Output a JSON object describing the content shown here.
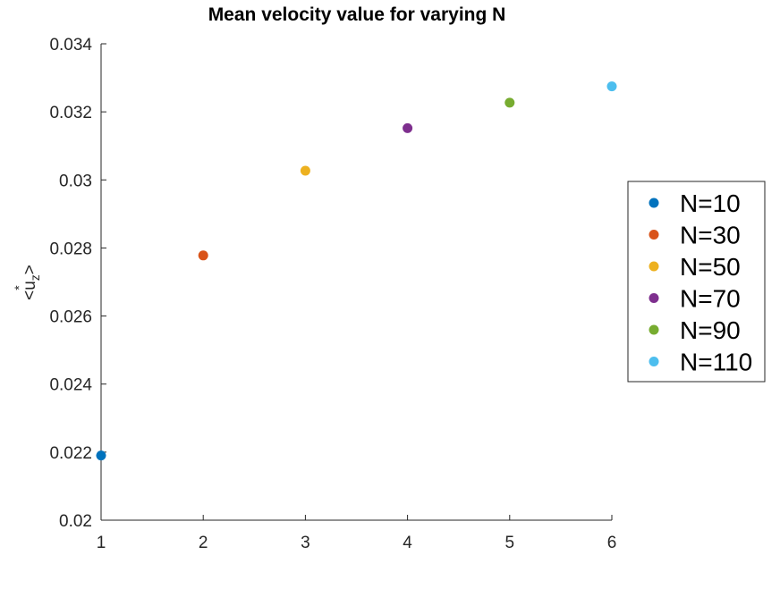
{
  "chart_data": {
    "type": "scatter",
    "title": "Mean velocity value for varying N",
    "xlabel": "",
    "ylabel": "<u_z^*>",
    "ylabel_parts": {
      "open": "<u",
      "sup": "*",
      "sub": "z",
      "close": ">"
    },
    "xlim": [
      1,
      6
    ],
    "ylim": [
      0.02,
      0.034
    ],
    "x_ticks": [
      {
        "value": 1,
        "label": "1"
      },
      {
        "value": 2,
        "label": "2"
      },
      {
        "value": 3,
        "label": "3"
      },
      {
        "value": 4,
        "label": "4"
      },
      {
        "value": 5,
        "label": "5"
      },
      {
        "value": 6,
        "label": "6"
      }
    ],
    "y_ticks": [
      {
        "value": 0.02,
        "label": "0.02"
      },
      {
        "value": 0.022,
        "label": "0.022"
      },
      {
        "value": 0.024,
        "label": "0.024"
      },
      {
        "value": 0.026,
        "label": "0.026"
      },
      {
        "value": 0.028,
        "label": "0.028"
      },
      {
        "value": 0.03,
        "label": "0.03"
      },
      {
        "value": 0.032,
        "label": "0.032"
      },
      {
        "value": 0.034,
        "label": "0.034"
      }
    ],
    "grid": false,
    "legend_position": "right",
    "series": [
      {
        "name": "N=10",
        "color": "#0072BD",
        "points": [
          {
            "x": 1,
            "y": 0.0219
          }
        ]
      },
      {
        "name": "N=30",
        "color": "#D95319",
        "points": [
          {
            "x": 2,
            "y": 0.02778
          }
        ]
      },
      {
        "name": "N=50",
        "color": "#EDB120",
        "points": [
          {
            "x": 3,
            "y": 0.03027
          }
        ]
      },
      {
        "name": "N=70",
        "color": "#7E2F8E",
        "points": [
          {
            "x": 4,
            "y": 0.03152
          }
        ]
      },
      {
        "name": "N=90",
        "color": "#77AC30",
        "points": [
          {
            "x": 5,
            "y": 0.03227
          }
        ]
      },
      {
        "name": "N=110",
        "color": "#4DBEEE",
        "points": [
          {
            "x": 6,
            "y": 0.03275
          }
        ]
      }
    ]
  }
}
